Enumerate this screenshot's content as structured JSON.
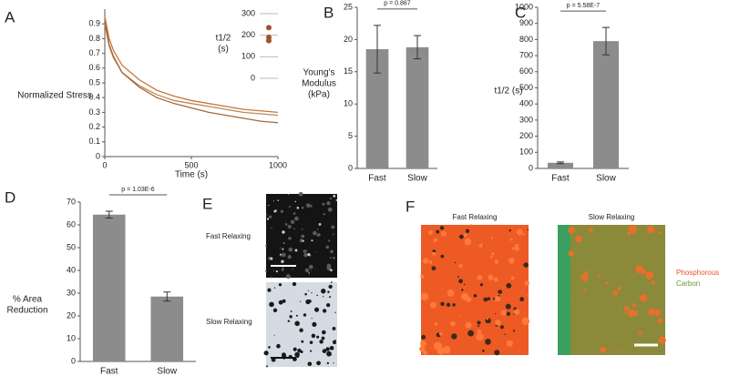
{
  "chart_data": [
    {
      "type": "line",
      "panel": "A",
      "ylabel": [
        "Normalized Stress"
      ],
      "xlabel": "Time (s)",
      "x": [
        0,
        25,
        50,
        100,
        200,
        300,
        400,
        500,
        600,
        700,
        800,
        900,
        1000
      ],
      "series": [
        {
          "color": "#c8783a",
          "values": [
            0.95,
            0.8,
            0.72,
            0.62,
            0.52,
            0.45,
            0.41,
            0.38,
            0.36,
            0.34,
            0.32,
            0.31,
            0.3
          ]
        },
        {
          "color": "#b88a5a",
          "values": [
            0.9,
            0.75,
            0.67,
            0.57,
            0.48,
            0.42,
            0.38,
            0.36,
            0.34,
            0.32,
            0.3,
            0.29,
            0.28
          ]
        },
        {
          "color": "#a5683a",
          "values": [
            0.92,
            0.76,
            0.68,
            0.57,
            0.47,
            0.4,
            0.36,
            0.33,
            0.3,
            0.28,
            0.26,
            0.24,
            0.23
          ]
        }
      ],
      "xlim": [
        0,
        1000
      ],
      "xticks": [
        0,
        500,
        1000
      ],
      "ylim": [
        0,
        1
      ],
      "yticks": [
        0,
        0.1,
        0.2,
        0.3,
        0.4,
        0.5,
        0.6,
        0.7,
        0.8,
        0.9
      ]
    },
    {
      "type": "dot",
      "ylabel": [
        "t1/2",
        "(s)"
      ],
      "values": [
        235,
        190,
        175
      ],
      "color": "#a0522d",
      "ylim": [
        0,
        300
      ],
      "yticks": [
        0,
        100,
        200,
        300
      ],
      "grid": true
    },
    {
      "type": "bar",
      "panel": "B",
      "ylabel": [
        "Young's",
        "Modulus",
        "(kPa)"
      ],
      "categories": [
        "Fast",
        "Slow"
      ],
      "values": [
        18.5,
        18.8
      ],
      "errors": [
        3.7,
        1.8
      ],
      "color": "#8c8c8c",
      "ylim": [
        0,
        25
      ],
      "yticks": [
        0,
        5,
        10,
        15,
        20,
        25
      ],
      "annotation": "p = 0.867"
    },
    {
      "type": "bar",
      "panel": "C",
      "ylabel": [
        "t1/2  (s)"
      ],
      "categories": [
        "Fast",
        "Slow"
      ],
      "values": [
        35,
        790
      ],
      "errors": [
        5,
        85
      ],
      "color": "#8c8c8c",
      "ylim": [
        0,
        1000
      ],
      "yticks": [
        0,
        100,
        200,
        300,
        400,
        500,
        600,
        700,
        800,
        900,
        1000
      ],
      "annotation": "p = 5.58E-7"
    },
    {
      "type": "bar",
      "panel": "D",
      "ylabel": [
        "% Area",
        "Reduction"
      ],
      "categories": [
        "Fast",
        "Slow"
      ],
      "values": [
        64.5,
        28.5
      ],
      "errors": [
        1.5,
        2
      ],
      "color": "#8c8c8c",
      "ylim": [
        0,
        70
      ],
      "yticks": [
        0,
        10,
        20,
        30,
        40,
        50,
        60,
        70
      ],
      "annotation": "p = 1.03E-6"
    }
  ],
  "images": [
    {
      "panel": "E",
      "labels": [
        "Fast Relaxing",
        "Slow Relaxing"
      ]
    },
    {
      "panel": "F",
      "labels": [
        "Fast Relaxing",
        "Slow Relaxing"
      ],
      "legend": [
        {
          "name": "Phosphorous",
          "color": "#e8542a"
        },
        {
          "name": "Carbon",
          "color": "#6a9a2a"
        }
      ]
    }
  ]
}
